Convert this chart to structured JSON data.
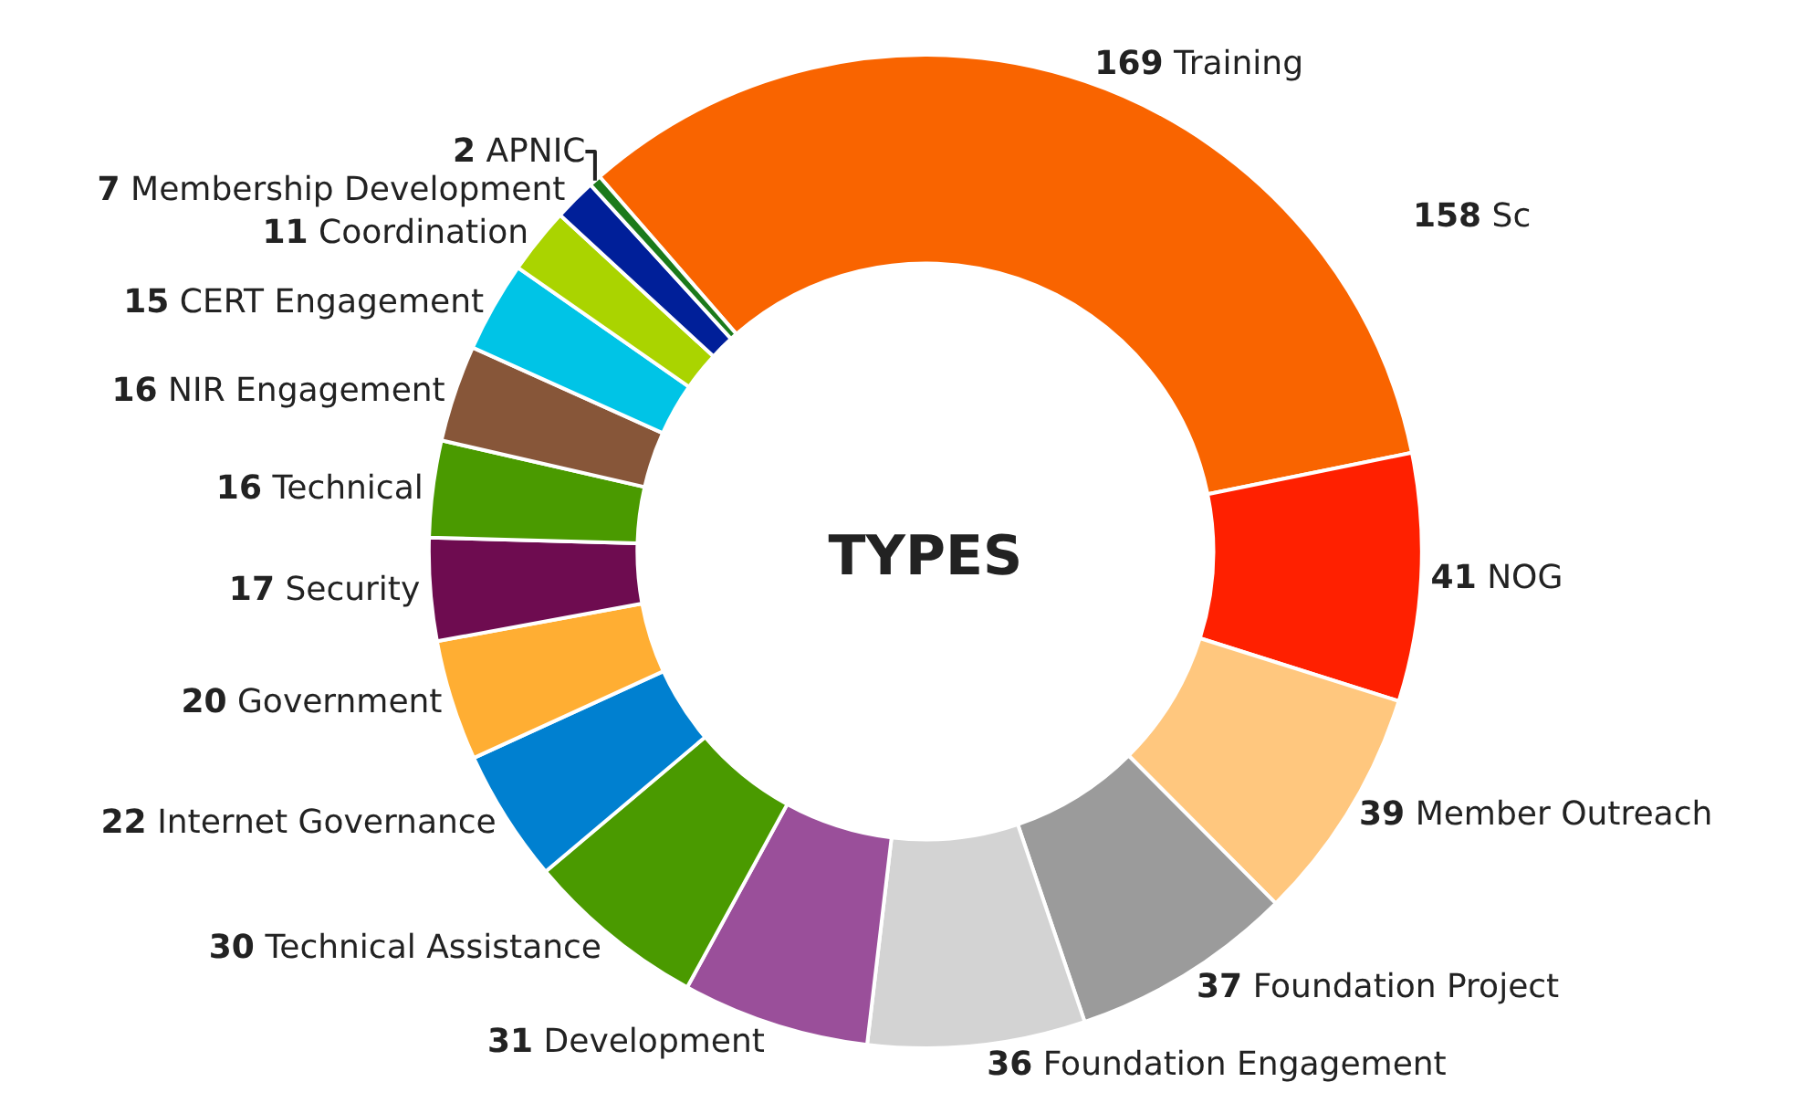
{
  "chart_data": {
    "type": "donut",
    "title": "TYPES",
    "categories": [
      "Training",
      "NOG",
      "Member Outreach",
      "Foundation Project",
      "Foundation Engagement",
      "Development",
      "Technical Assistance",
      "Internet Governance",
      "Government",
      "Security",
      "Technical",
      "NIR Engagement",
      "CERT Engagement",
      "Coordination",
      "Membership Development",
      "APNIC"
    ],
    "values": [
      169,
      41,
      39,
      37,
      36,
      31,
      30,
      22,
      20,
      17,
      16,
      16,
      15,
      11,
      7,
      2
    ],
    "colors": [
      "#f96400",
      "#ff2000",
      "#ffc77e",
      "#9b9b9b",
      "#d3d3d3",
      "#9a4f9a",
      "#4a9a00",
      "#0080d0",
      "#ffae33",
      "#6e0c50",
      "#4a9a00",
      "#875639",
      "#00c4e6",
      "#aad400",
      "#001f99",
      "#1b7a1b"
    ],
    "data_labels": true,
    "legend": false,
    "annotations": [
      "158 Sc"
    ]
  }
}
